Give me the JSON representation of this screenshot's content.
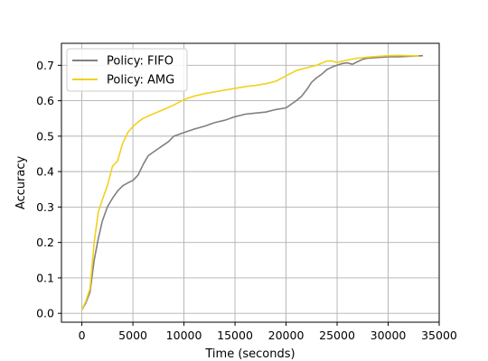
{
  "chart_data": {
    "type": "line",
    "title": "",
    "xlabel": "Time (seconds)",
    "ylabel": "Accuracy",
    "xlim": [
      -2000,
      35000
    ],
    "ylim": [
      -0.025,
      0.762
    ],
    "xticks": [
      0,
      5000,
      10000,
      15000,
      20000,
      25000,
      30000,
      35000
    ],
    "xtick_labels": [
      "0",
      "5000",
      "10000",
      "15000",
      "20000",
      "25000",
      "30000",
      "35000"
    ],
    "yticks": [
      0.0,
      0.1,
      0.2,
      0.3,
      0.4,
      0.5,
      0.6,
      0.7
    ],
    "ytick_labels": [
      "0.0",
      "0.1",
      "0.2",
      "0.3",
      "0.4",
      "0.5",
      "0.6",
      "0.7"
    ],
    "grid": true,
    "legend_position": "top-left",
    "series": [
      {
        "name": "Policy: FIFO",
        "color": "#808080",
        "points": [
          [
            0,
            0.01
          ],
          [
            400,
            0.03
          ],
          [
            800,
            0.06
          ],
          [
            1200,
            0.15
          ],
          [
            1600,
            0.21
          ],
          [
            2000,
            0.26
          ],
          [
            2500,
            0.3
          ],
          [
            3000,
            0.325
          ],
          [
            3500,
            0.345
          ],
          [
            4000,
            0.36
          ],
          [
            4500,
            0.368
          ],
          [
            5000,
            0.375
          ],
          [
            5500,
            0.39
          ],
          [
            6000,
            0.42
          ],
          [
            6500,
            0.445
          ],
          [
            7000,
            0.455
          ],
          [
            7500,
            0.465
          ],
          [
            8000,
            0.475
          ],
          [
            8500,
            0.485
          ],
          [
            9000,
            0.5
          ],
          [
            10000,
            0.51
          ],
          [
            11000,
            0.52
          ],
          [
            12000,
            0.528
          ],
          [
            13000,
            0.538
          ],
          [
            14000,
            0.545
          ],
          [
            15000,
            0.555
          ],
          [
            16000,
            0.562
          ],
          [
            17000,
            0.565
          ],
          [
            18000,
            0.568
          ],
          [
            19000,
            0.575
          ],
          [
            20000,
            0.58
          ],
          [
            21000,
            0.6
          ],
          [
            21500,
            0.612
          ],
          [
            22000,
            0.63
          ],
          [
            22500,
            0.652
          ],
          [
            23000,
            0.665
          ],
          [
            23500,
            0.675
          ],
          [
            24000,
            0.688
          ],
          [
            24500,
            0.695
          ],
          [
            25000,
            0.7
          ],
          [
            25500,
            0.705
          ],
          [
            26000,
            0.707
          ],
          [
            26500,
            0.703
          ],
          [
            27000,
            0.71
          ],
          [
            27500,
            0.717
          ],
          [
            28000,
            0.72
          ],
          [
            29000,
            0.722
          ],
          [
            30000,
            0.724
          ],
          [
            31000,
            0.724
          ],
          [
            32000,
            0.725
          ],
          [
            33400,
            0.727
          ]
        ]
      },
      {
        "name": "Policy: AMG",
        "color": "#F2D11B",
        "points": [
          [
            0,
            0.01
          ],
          [
            400,
            0.035
          ],
          [
            800,
            0.07
          ],
          [
            1200,
            0.2
          ],
          [
            1600,
            0.285
          ],
          [
            2000,
            0.32
          ],
          [
            2500,
            0.36
          ],
          [
            3000,
            0.415
          ],
          [
            3500,
            0.43
          ],
          [
            4000,
            0.48
          ],
          [
            4500,
            0.51
          ],
          [
            5000,
            0.527
          ],
          [
            5500,
            0.54
          ],
          [
            6000,
            0.55
          ],
          [
            7000,
            0.563
          ],
          [
            8000,
            0.575
          ],
          [
            9000,
            0.588
          ],
          [
            10000,
            0.603
          ],
          [
            11000,
            0.613
          ],
          [
            12000,
            0.62
          ],
          [
            13000,
            0.625
          ],
          [
            14000,
            0.63
          ],
          [
            15000,
            0.635
          ],
          [
            16000,
            0.64
          ],
          [
            17000,
            0.643
          ],
          [
            18000,
            0.648
          ],
          [
            19000,
            0.655
          ],
          [
            20000,
            0.67
          ],
          [
            21000,
            0.685
          ],
          [
            22000,
            0.693
          ],
          [
            23000,
            0.7
          ],
          [
            24000,
            0.712
          ],
          [
            24500,
            0.712
          ],
          [
            25000,
            0.708
          ],
          [
            26000,
            0.715
          ],
          [
            27000,
            0.72
          ],
          [
            28000,
            0.723
          ],
          [
            29000,
            0.725
          ],
          [
            30000,
            0.727
          ],
          [
            31000,
            0.728
          ],
          [
            32000,
            0.727
          ],
          [
            33000,
            0.726
          ]
        ]
      }
    ]
  }
}
